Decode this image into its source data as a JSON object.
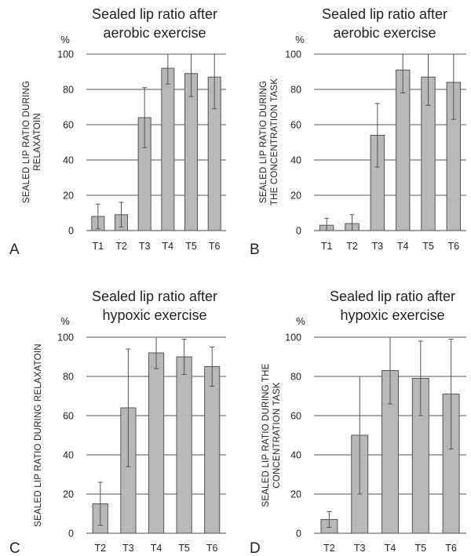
{
  "chart_data": [
    {
      "panel": "A",
      "type": "bar",
      "title_lines": [
        "Sealed lip ratio after",
        "aerobic exercise"
      ],
      "ylabel_lines": [
        "SEALED LIP RATIO DURING",
        "RELAXATOIN"
      ],
      "yunit": "%",
      "ylim": [
        0,
        100
      ],
      "yticks": [
        0,
        20,
        40,
        60,
        80,
        100
      ],
      "categories": [
        "T1",
        "T2",
        "T3",
        "T4",
        "T5",
        "T6"
      ],
      "values": [
        8,
        9,
        64,
        92,
        89,
        87
      ],
      "error": [
        7,
        7,
        17,
        9,
        13,
        18
      ],
      "grid": true
    },
    {
      "panel": "B",
      "type": "bar",
      "title_lines": [
        "Sealed lip ratio after",
        "aerobic exercise"
      ],
      "ylabel_lines": [
        "SEALED LIP RATIO DURING",
        "THE CONCENTRATION TASK"
      ],
      "yunit": "%",
      "ylim": [
        0,
        100
      ],
      "yticks": [
        0,
        20,
        40,
        60,
        80,
        100
      ],
      "categories": [
        "T1",
        "T2",
        "T3",
        "T4",
        "T5",
        "T6"
      ],
      "values": [
        3,
        4,
        54,
        91,
        87,
        84
      ],
      "error": [
        4,
        5,
        18,
        13,
        16,
        21
      ],
      "grid": true
    },
    {
      "panel": "C",
      "type": "bar",
      "title_lines": [
        "Sealed lip ratio after",
        "hypoxic exercise"
      ],
      "ylabel_lines": [
        "SEALED LIP RATIO DURING RELAXATOIN"
      ],
      "yunit": "%",
      "ylim": [
        0,
        100
      ],
      "yticks": [
        0,
        20,
        40,
        60,
        80,
        100
      ],
      "categories": [
        "T2",
        "T3",
        "T4",
        "T5",
        "T6"
      ],
      "values": [
        15,
        64,
        92,
        90,
        85
      ],
      "error": [
        11,
        30,
        8,
        9,
        10
      ],
      "grid": true
    },
    {
      "panel": "D",
      "type": "bar",
      "title_lines": [
        "Sealed lip ratio after",
        "hypoxic exercise"
      ],
      "ylabel_lines": [
        "SEALED LIP RATIO DURING THE",
        "CONCENTRATION TASK"
      ],
      "yunit": "%",
      "ylim": [
        0,
        100
      ],
      "yticks": [
        0,
        20,
        40,
        60,
        80,
        100
      ],
      "categories": [
        "T2",
        "T3",
        "T4",
        "T5",
        "T6"
      ],
      "values": [
        7,
        50,
        83,
        79,
        71
      ],
      "error": [
        4,
        30,
        17,
        19,
        28
      ],
      "grid": true
    }
  ]
}
